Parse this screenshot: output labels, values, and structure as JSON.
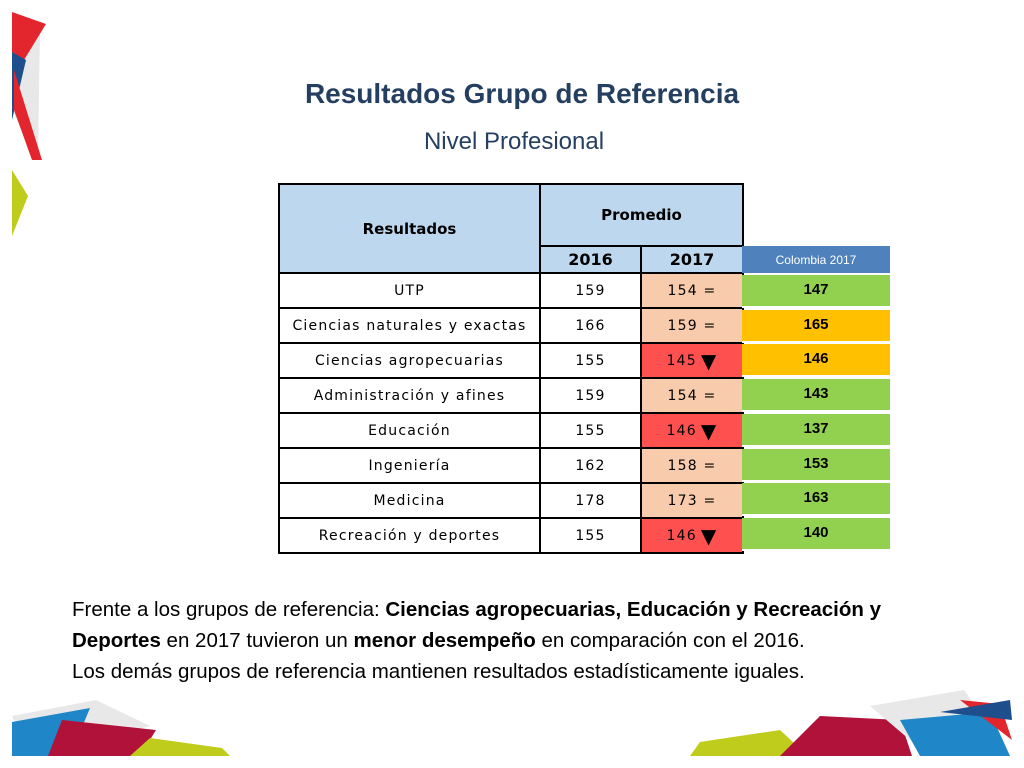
{
  "title": "Resultados Grupo de Referencia",
  "subtitle": "Nivel Profesional",
  "table": {
    "header_resultados": "Resultados",
    "header_promedio": "Promedio",
    "year_2016": "2016",
    "year_2017": "2017",
    "rows": [
      {
        "name": "UTP",
        "v2016": "159",
        "v2017": "154 =",
        "trend": "equal"
      },
      {
        "name": "Ciencias naturales y exactas",
        "v2016": "166",
        "v2017": "159 =",
        "trend": "equal"
      },
      {
        "name": "Ciencias agropecuarias",
        "v2016": "155",
        "v2017": "145",
        "trend": "down"
      },
      {
        "name": "Administración y afines",
        "v2016": "159",
        "v2017": "154 =",
        "trend": "equal"
      },
      {
        "name": "Educación",
        "v2016": "155",
        "v2017": "146",
        "trend": "down"
      },
      {
        "name": "Ingeniería",
        "v2016": "162",
        "v2017": "158 =",
        "trend": "equal"
      },
      {
        "name": "Medicina",
        "v2016": "178",
        "v2017": "173 =",
        "trend": "equal"
      },
      {
        "name": "Recreación y deportes",
        "v2016": "155",
        "v2017": "146",
        "trend": "down"
      }
    ],
    "down_arrow": "▼",
    "trend_colors": {
      "equal": "#f8cbad",
      "down": "#ff5050"
    }
  },
  "colombia": {
    "header": "Colombia 2017",
    "values": [
      "147",
      "165",
      "146",
      "143",
      "137",
      "153",
      "163",
      "140"
    ],
    "colors": [
      "#92d050",
      "#ffc000",
      "#ffc000",
      "#92d050",
      "#92d050",
      "#92d050",
      "#92d050",
      "#92d050"
    ]
  },
  "paragraph": {
    "p1": "Frente a los grupos de referencia: ",
    "b1": "Ciencias agropecuarias, Educación y Recreación y Deportes",
    "p2": " en 2017 tuvieron un ",
    "b2": "menor desempeño",
    "p3": " en comparación con el 2016.",
    "line2": "Los demás grupos de referencia mantienen resultados estadísticamente iguales."
  }
}
